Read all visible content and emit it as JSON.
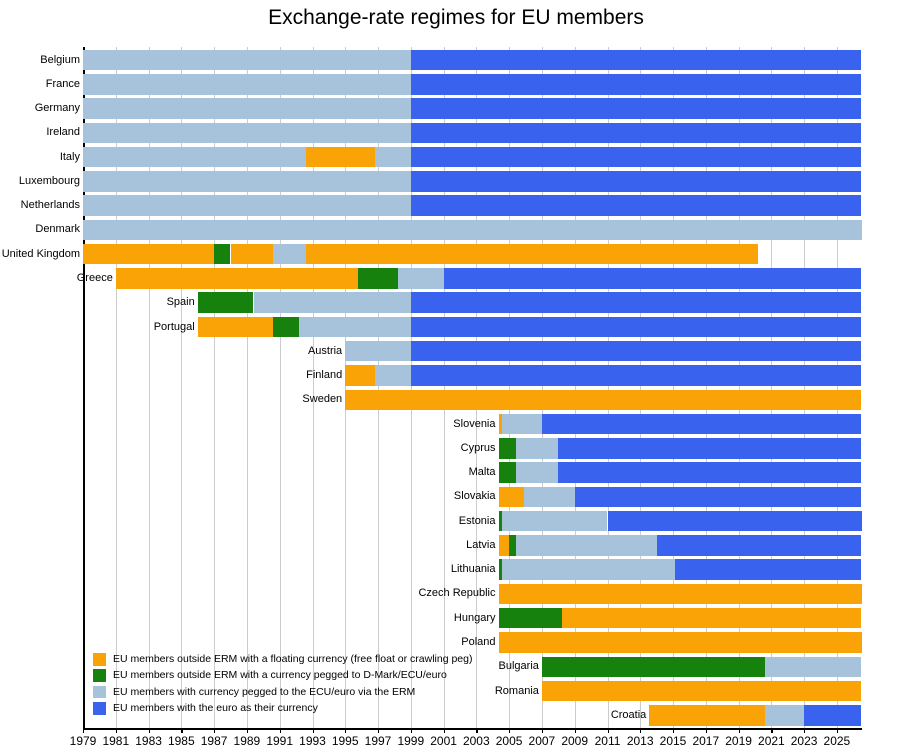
{
  "title": "Exchange-rate regimes for EU members",
  "colors": {
    "float": "#F9A306",
    "peg": "#17810D",
    "erm": "#A7C3DC",
    "euro": "#3962EF",
    "gridline": "#CCCCCC",
    "axis": "#000000"
  },
  "legend": {
    "items": [
      {
        "regime": "float",
        "label": "EU members outside ERM with a floating currency (free float or crawling peg)"
      },
      {
        "regime": "peg",
        "label": "EU members outside ERM with a currency pegged to D-Mark/ECU/euro"
      },
      {
        "regime": "erm",
        "label": "EU members with currency pegged to the ECU/euro via the ERM"
      },
      {
        "regime": "euro",
        "label": "EU members with the euro as their currency"
      }
    ]
  },
  "chart_data": {
    "type": "bar",
    "orientation": "horizontal-timeline",
    "title": "Exchange-rate regimes for EU members",
    "x_axis": {
      "min": 1979,
      "max": 2026.5,
      "tick_labels": [
        1979,
        1981,
        1983,
        1985,
        1987,
        1989,
        1991,
        1993,
        1995,
        1997,
        1999,
        2001,
        2003,
        2005,
        2007,
        2009,
        2011,
        2013,
        2015,
        2017,
        2019,
        2021,
        2023,
        2025
      ],
      "grid": true
    },
    "legend_position": "bottom-left",
    "rows": [
      {
        "country": "Belgium",
        "segments": [
          {
            "regime": "erm",
            "from": 1979,
            "to": 1999
          },
          {
            "regime": "euro",
            "from": 1999,
            "to": 2026.5
          }
        ]
      },
      {
        "country": "France",
        "segments": [
          {
            "regime": "erm",
            "from": 1979,
            "to": 1999
          },
          {
            "regime": "euro",
            "from": 1999,
            "to": 2026.5
          }
        ]
      },
      {
        "country": "Germany",
        "segments": [
          {
            "regime": "erm",
            "from": 1979,
            "to": 1999
          },
          {
            "regime": "euro",
            "from": 1999,
            "to": 2026.5
          }
        ]
      },
      {
        "country": "Ireland",
        "segments": [
          {
            "regime": "erm",
            "from": 1979,
            "to": 1999
          },
          {
            "regime": "euro",
            "from": 1999,
            "to": 2026.5
          }
        ]
      },
      {
        "country": "Italy",
        "segments": [
          {
            "regime": "erm",
            "from": 1979,
            "to": 1992.6
          },
          {
            "regime": "float",
            "from": 1992.6,
            "to": 1996.8
          },
          {
            "regime": "erm",
            "from": 1996.8,
            "to": 1999
          },
          {
            "regime": "euro",
            "from": 1999,
            "to": 2026.5
          }
        ]
      },
      {
        "country": "Luxembourg",
        "segments": [
          {
            "regime": "erm",
            "from": 1979,
            "to": 1999
          },
          {
            "regime": "euro",
            "from": 1999,
            "to": 2026.5
          }
        ]
      },
      {
        "country": "Netherlands",
        "segments": [
          {
            "regime": "erm",
            "from": 1979,
            "to": 1999
          },
          {
            "regime": "euro",
            "from": 1999,
            "to": 2026.5
          }
        ]
      },
      {
        "country": "Denmark",
        "segments": [
          {
            "regime": "erm",
            "from": 1979,
            "to": 2026.5
          }
        ]
      },
      {
        "country": "United Kingdom",
        "segments": [
          {
            "regime": "float",
            "from": 1979,
            "to": 1987
          },
          {
            "regime": "peg",
            "from": 1987,
            "to": 1988
          },
          {
            "regime": "float",
            "from": 1988,
            "to": 1990.6
          },
          {
            "regime": "erm",
            "from": 1990.6,
            "to": 1992.6
          },
          {
            "regime": "float",
            "from": 1992.6,
            "to": 2020.2
          }
        ]
      },
      {
        "country": "Greece",
        "segments": [
          {
            "regime": "float",
            "from": 1981,
            "to": 1995.8
          },
          {
            "regime": "peg",
            "from": 1995.8,
            "to": 1998.2
          },
          {
            "regime": "erm",
            "from": 1998.2,
            "to": 2001
          },
          {
            "regime": "euro",
            "from": 2001,
            "to": 2026.5
          }
        ]
      },
      {
        "country": "Spain",
        "segments": [
          {
            "regime": "peg",
            "from": 1986,
            "to": 1989.4
          },
          {
            "regime": "erm",
            "from": 1989.4,
            "to": 1999
          },
          {
            "regime": "euro",
            "from": 1999,
            "to": 2026.5
          }
        ]
      },
      {
        "country": "Portugal",
        "segments": [
          {
            "regime": "float",
            "from": 1986,
            "to": 1990.6
          },
          {
            "regime": "peg",
            "from": 1990.6,
            "to": 1992.2
          },
          {
            "regime": "erm",
            "from": 1992.2,
            "to": 1999
          },
          {
            "regime": "euro",
            "from": 1999,
            "to": 2026.5
          }
        ]
      },
      {
        "country": "Austria",
        "segments": [
          {
            "regime": "erm",
            "from": 1995,
            "to": 1999
          },
          {
            "regime": "euro",
            "from": 1999,
            "to": 2026.5
          }
        ]
      },
      {
        "country": "Finland",
        "segments": [
          {
            "regime": "float",
            "from": 1995,
            "to": 1996.8
          },
          {
            "regime": "erm",
            "from": 1996.8,
            "to": 1999
          },
          {
            "regime": "euro",
            "from": 1999,
            "to": 2026.5
          }
        ]
      },
      {
        "country": "Sweden",
        "segments": [
          {
            "regime": "float",
            "from": 1995,
            "to": 2026.5
          }
        ]
      },
      {
        "country": "Slovenia",
        "segments": [
          {
            "regime": "float",
            "from": 2004.35,
            "to": 2004.55
          },
          {
            "regime": "erm",
            "from": 2004.55,
            "to": 2007
          },
          {
            "regime": "euro",
            "from": 2007,
            "to": 2026.5
          }
        ]
      },
      {
        "country": "Cyprus",
        "segments": [
          {
            "regime": "peg",
            "from": 2004.35,
            "to": 2005.4
          },
          {
            "regime": "erm",
            "from": 2005.4,
            "to": 2008
          },
          {
            "regime": "euro",
            "from": 2008,
            "to": 2026.5
          }
        ]
      },
      {
        "country": "Malta",
        "segments": [
          {
            "regime": "peg",
            "from": 2004.35,
            "to": 2005.4
          },
          {
            "regime": "erm",
            "from": 2005.4,
            "to": 2008
          },
          {
            "regime": "euro",
            "from": 2008,
            "to": 2026.5
          }
        ]
      },
      {
        "country": "Slovakia",
        "segments": [
          {
            "regime": "float",
            "from": 2004.35,
            "to": 2005.9
          },
          {
            "regime": "erm",
            "from": 2005.9,
            "to": 2009
          },
          {
            "regime": "euro",
            "from": 2009,
            "to": 2026.5
          }
        ]
      },
      {
        "country": "Estonia",
        "segments": [
          {
            "regime": "peg",
            "from": 2004.35,
            "to": 2004.55
          },
          {
            "regime": "erm",
            "from": 2004.55,
            "to": 2011
          },
          {
            "regime": "euro",
            "from": 2011,
            "to": 2026.5
          }
        ]
      },
      {
        "country": "Latvia",
        "segments": [
          {
            "regime": "float",
            "from": 2004.35,
            "to": 2005
          },
          {
            "regime": "peg",
            "from": 2005,
            "to": 2005.4
          },
          {
            "regime": "erm",
            "from": 2005.4,
            "to": 2014
          },
          {
            "regime": "euro",
            "from": 2014,
            "to": 2026.5
          }
        ]
      },
      {
        "country": "Lithuania",
        "segments": [
          {
            "regime": "peg",
            "from": 2004.35,
            "to": 2004.55
          },
          {
            "regime": "erm",
            "from": 2004.55,
            "to": 2015.1
          },
          {
            "regime": "euro",
            "from": 2015.1,
            "to": 2026.5
          }
        ]
      },
      {
        "country": "Czech Republic",
        "segments": [
          {
            "regime": "float",
            "from": 2004.35,
            "to": 2026.5
          }
        ]
      },
      {
        "country": "Hungary",
        "segments": [
          {
            "regime": "peg",
            "from": 2004.35,
            "to": 2008.2
          },
          {
            "regime": "float",
            "from": 2008.2,
            "to": 2026.5
          }
        ]
      },
      {
        "country": "Poland",
        "segments": [
          {
            "regime": "float",
            "from": 2004.35,
            "to": 2026.5
          }
        ]
      },
      {
        "country": "Bulgaria",
        "segments": [
          {
            "regime": "peg",
            "from": 2007,
            "to": 2020.6
          },
          {
            "regime": "erm",
            "from": 2020.6,
            "to": 2026.5
          }
        ]
      },
      {
        "country": "Romania",
        "segments": [
          {
            "regime": "float",
            "from": 2007,
            "to": 2026.5
          }
        ]
      },
      {
        "country": "Croatia",
        "segments": [
          {
            "regime": "float",
            "from": 2013.55,
            "to": 2020.6
          },
          {
            "regime": "erm",
            "from": 2020.6,
            "to": 2023
          },
          {
            "regime": "euro",
            "from": 2023,
            "to": 2026.5
          }
        ]
      }
    ]
  }
}
